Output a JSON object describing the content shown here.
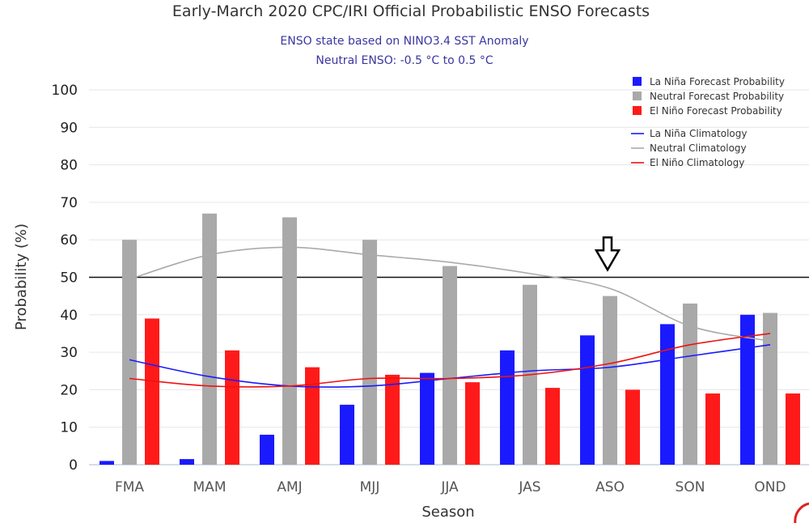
{
  "chart_data": {
    "type": "bar",
    "title": "Early-March 2020 CPC/IRI Official Probabilistic ENSO Forecasts",
    "subtitle_lines": [
      "ENSO state based on NINO3.4 SST Anomaly",
      "Neutral ENSO: -0.5 °C to 0.5 °C"
    ],
    "xlabel": "Season",
    "ylabel": "Probability (%)",
    "ylim": [
      0,
      100
    ],
    "yticks": [
      0,
      10,
      20,
      30,
      40,
      50,
      60,
      70,
      80,
      90,
      100
    ],
    "reference_line": 50,
    "categories": [
      "FMA",
      "MAM",
      "AMJ",
      "MJJ",
      "JJA",
      "JAS",
      "ASO",
      "SON",
      "OND"
    ],
    "series": [
      {
        "name": "La Niña Forecast Probability",
        "color": "#1a1aff",
        "values": [
          1,
          1.5,
          8,
          16,
          24.5,
          30.5,
          34.5,
          37.5,
          40
        ]
      },
      {
        "name": "Neutral Forecast Probability",
        "color": "#a9a9a9",
        "values": [
          60,
          67,
          66,
          60,
          53,
          48,
          45,
          43,
          40.5
        ]
      },
      {
        "name": "El Niño Forecast Probability",
        "color": "#ff1a1a",
        "values": [
          39,
          30.5,
          26,
          24,
          22,
          20.5,
          20,
          19,
          19
        ]
      }
    ],
    "lines": [
      {
        "name": "La Niña Climatology",
        "color": "#1a1aff",
        "values": [
          28,
          23.5,
          21,
          21,
          23,
          25,
          26,
          29,
          32
        ]
      },
      {
        "name": "Neutral Climatology",
        "color": "#aaaaaa",
        "values": [
          49.5,
          56,
          58,
          56,
          54,
          51,
          47,
          37,
          33
        ]
      },
      {
        "name": "El Niño Climatology",
        "color": "#ee1111",
        "values": [
          23,
          21,
          21,
          23,
          23,
          24,
          27,
          32,
          35
        ]
      }
    ],
    "annotation": {
      "type": "down-arrow",
      "category": "ASO",
      "value": 52
    }
  }
}
